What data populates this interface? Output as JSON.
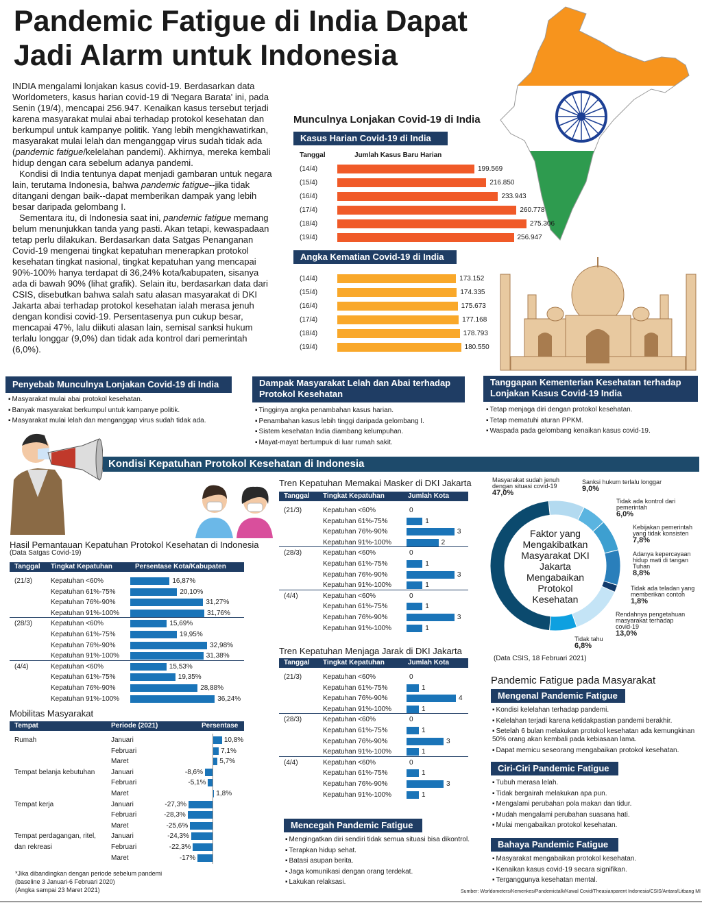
{
  "title": "Pandemic Fatigue di India Dapat Jadi Alarm untuk Indonesia",
  "body": {
    "p1a": "INDIA mengalami lonjakan kasus covid-19. Berdasarkan data Worldometers, kasus harian covid-19 di 'Negara Barata' ini, pada Senin (19/4), mencapai 256.947. Kenaikan kasus tersebut terjadi karena masyarakat mulai abai terhadap protokol kesehatan dan berkumpul untuk kampanye politik. Yang lebih mengkhawatirkan, masyarakat mulai lelah dan menganggap virus sudah tidak ada (",
    "p1i": "pandemic fatigue",
    "p1b": "/kelelahan pandemi). Akhirnya, mereka kembali hidup dengan cara sebelum adanya pandemi.",
    "p2a": "Kondisi di India tentunya dapat menjadi gambaran untuk negara lain, terutama Indonesia, bahwa ",
    "p2i": "pandemic fatigue",
    "p2b": "--jika tidak ditangani dengan baik--dapat memberikan dampak yang lebih besar daripada gelombang I.",
    "p3a": "Sementara itu, di Indonesia saat ini, ",
    "p3i": "pandemic fatigue",
    "p3b": " memang belum menunjukkan tanda yang pasti. Akan tetapi, kewaspadaan tetap perlu dilakukan. Berdasarkan data Satgas Penanganan Covid-19 mengenai tingkat kepatuhan menerapkan protokol kesehatan tingkat nasional, tingkat kepatuhan yang mencapai 90%-100% hanya terdapat di 36,24% kota/kabupaten, sisanya ada di bawah 90% (lihat grafik). Selain itu, berdasarkan data dari CSIS, disebutkan bahwa salah satu alasan masyarakat di DKI Jakarta abai terhadap protokol kesehatan ialah merasa jenuh dengan kondisi covid-19. Persentasenya pun cukup besar, mencapai 47%, lalu diikuti alasan lain, semisal sanksi hukum terlalu longgar (9,0%) dan tidak ada kontrol dari pemerintah (6,0%)."
  },
  "colors": {
    "navy": "#1f3d64",
    "orange": "#f05a28",
    "amber": "#f9a82a",
    "banner": "#1d4a6b",
    "saffron": "#f7941d",
    "green": "#2e9b4f"
  },
  "india": {
    "title": "Munculnya Lonjakan Covid-19 di India",
    "cases": {
      "header": "Kasus Harian Covid-19 di India",
      "col_date": "Tanggal",
      "col_value": "Jumlah Kasus Baru Harian",
      "rows": [
        {
          "date": "(14/4)",
          "label": "199.569",
          "value": 199569
        },
        {
          "date": "(15/4)",
          "label": "216.850",
          "value": 216850
        },
        {
          "date": "(16/4)",
          "label": "233.943",
          "value": 233943
        },
        {
          "date": "(17/4)",
          "label": "260.778",
          "value": 260778
        },
        {
          "date": "(18/4)",
          "label": "275.306",
          "value": 275306
        },
        {
          "date": "(19/4)",
          "label": "256.947",
          "value": 256947
        }
      ]
    },
    "deaths": {
      "header": "Angka Kematian Covid-19 di India",
      "rows": [
        {
          "date": "(14/4)",
          "label": "173.152",
          "value": 173152
        },
        {
          "date": "(15/4)",
          "label": "174.335",
          "value": 174335
        },
        {
          "date": "(16/4)",
          "label": "175.673",
          "value": 175673
        },
        {
          "date": "(17/4)",
          "label": "177.168",
          "value": 177168
        },
        {
          "date": "(18/4)",
          "label": "178.793",
          "value": 178793
        },
        {
          "date": "(19/4)",
          "label": "180.550",
          "value": 180550
        }
      ]
    }
  },
  "sections": [
    {
      "title": "Penyebab Munculnya Lonjakan Covid-19 di India",
      "items": [
        "Masyarakat mulai abai protokol kesehatan.",
        "Banyak masyarakat berkumpul untuk kampanye politik.",
        "Masyarakat mulai lelah dan menganggap virus sudah tidak ada."
      ]
    },
    {
      "title": "Dampak Masyarakat Lelah dan Abai terhadap Protokol Kesehatan",
      "items": [
        "Tingginya angka penambahan kasus harian.",
        "Penambahan kasus lebih tinggi daripada gelombang I.",
        "Sistem kesehatan India diambang kelumpuhan.",
        "Mayat-mayat bertumpuk di luar rumah sakit."
      ]
    },
    {
      "title": "Tanggapan Kementerian Kesehatan terhadap Lonjakan Kasus Covid-19 India",
      "items": [
        "Tetap menjaga diri dengan protokol kesehatan.",
        "Tetap mematuhi aturan PPKM.",
        "Waspada pada gelombang kenaikan kasus covid-19."
      ]
    }
  ],
  "banner": "Kondisi Kepatuhan Protokol Kesehatan di Indonesia",
  "compliance": {
    "title": "Hasil Pemantauan Kepatuhan Protokol Kesehatan di Indonesia",
    "subtitle": "(Data Satgas Covid-19)",
    "cols": [
      "Tanggal",
      "Tingkat Kepatuhan",
      "Persentase Kota/Kabupaten"
    ],
    "groups": [
      {
        "date": "(21/3)",
        "rows": [
          {
            "level": "Kepatuhan <60%",
            "label": "16,87%",
            "value": 16.87
          },
          {
            "level": "Kepatuhan 61%-75%",
            "label": "20,10%",
            "value": 20.1
          },
          {
            "level": "Kepatuhan 76%-90%",
            "label": "31,27%",
            "value": 31.27
          },
          {
            "level": "Kepatuhan 91%-100%",
            "label": "31,76%",
            "value": 31.76
          }
        ]
      },
      {
        "date": "(28/3)",
        "rows": [
          {
            "level": "Kepatuhan <60%",
            "label": "15,69%",
            "value": 15.69
          },
          {
            "level": "Kepatuhan 61%-75%",
            "label": "19,95%",
            "value": 19.95
          },
          {
            "level": "Kepatuhan 76%-90%",
            "label": "32,98%",
            "value": 32.98
          },
          {
            "level": "Kepatuhan 91%-100%",
            "label": "31,38%",
            "value": 31.38
          }
        ]
      },
      {
        "date": "(4/4)",
        "rows": [
          {
            "level": "Kepatuhan <60%",
            "label": "15,53%",
            "value": 15.53
          },
          {
            "level": "Kepatuhan 61%-75%",
            "label": "19,35%",
            "value": 19.35
          },
          {
            "level": "Kepatuhan 76%-90%",
            "label": "28,88%",
            "value": 28.88
          },
          {
            "level": "Kepatuhan 91%-100%",
            "label": "36,24%",
            "value": 36.24
          }
        ]
      }
    ]
  },
  "mobility": {
    "title": "Mobilitas Masyarakat",
    "cols": [
      "Tempat",
      "Periode (2021)",
      "Persentase"
    ],
    "groups": [
      {
        "place": "Rumah",
        "rows": [
          {
            "month": "Januari",
            "label": "10,8%",
            "value": 10.8
          },
          {
            "month": "Februari",
            "label": "7,1%",
            "value": 7.1
          },
          {
            "month": "Maret",
            "label": "5,7%",
            "value": 5.7
          }
        ]
      },
      {
        "place": "Tempat belanja kebutuhan",
        "rows": [
          {
            "month": "Januari",
            "label": "-8,6%",
            "value": -8.6
          },
          {
            "month": "Februari",
            "label": "-5,1%",
            "value": -5.1
          },
          {
            "month": "Maret",
            "label": "1,8%",
            "value": 1.8
          }
        ]
      },
      {
        "place": "Tempat kerja",
        "rows": [
          {
            "month": "Januari",
            "label": "-27,3%",
            "value": -27.3
          },
          {
            "month": "Februari",
            "label": "-28,3%",
            "value": -28.3
          },
          {
            "month": "Maret",
            "label": "-25,6%",
            "value": -25.6
          }
        ]
      },
      {
        "place": "Tempat perdagangan, ritel, dan rekreasi",
        "rows": [
          {
            "month": "Januari",
            "label": "-24,3%",
            "value": -24.3
          },
          {
            "month": "Februari",
            "label": "-22,3%",
            "value": -22.3
          },
          {
            "month": "Maret",
            "label": "-17%",
            "value": -17
          }
        ]
      }
    ],
    "notes": [
      "*Jika dibandingkan dengan periode sebelum pandemi",
      "(baseline 3 Januari-6 Februari 2020)",
      "(Angka sampai 23 Maret 2021)"
    ]
  },
  "mask": {
    "title": "Tren Kepatuhan Memakai Masker di DKI Jakarta",
    "cols": [
      "Tanggal",
      "Tingkat Kepatuhan",
      "Jumlah Kota"
    ],
    "groups": [
      {
        "date": "(21/3)",
        "rows": [
          {
            "level": "Kepatuhan <60%",
            "value": 0
          },
          {
            "level": "Kepatuhan 61%-75%",
            "value": 1
          },
          {
            "level": "Kepatuhan 76%-90%",
            "value": 3
          },
          {
            "level": "Kepatuhan 91%-100%",
            "value": 2
          }
        ]
      },
      {
        "date": "(28/3)",
        "rows": [
          {
            "level": "Kepatuhan <60%",
            "value": 0
          },
          {
            "level": "Kepatuhan 61%-75%",
            "value": 1
          },
          {
            "level": "Kepatuhan 76%-90%",
            "value": 3
          },
          {
            "level": "Kepatuhan 91%-100%",
            "value": 1
          }
        ]
      },
      {
        "date": "(4/4)",
        "rows": [
          {
            "level": "Kepatuhan <60%",
            "value": 0
          },
          {
            "level": "Kepatuhan 61%-75%",
            "value": 1
          },
          {
            "level": "Kepatuhan 76%-90%",
            "value": 3
          },
          {
            "level": "Kepatuhan 91%-100%",
            "value": 1
          }
        ]
      }
    ]
  },
  "distance": {
    "title": "Tren Kepatuhan Menjaga Jarak di DKI Jakarta",
    "cols": [
      "Tanggal",
      "Tingkat Kepatuhan",
      "Jumlah Kota"
    ],
    "groups": [
      {
        "date": "(21/3)",
        "rows": [
          {
            "level": "Kepatuhan <60%",
            "value": 0
          },
          {
            "level": "Kepatuhan 61%-75%",
            "value": 1
          },
          {
            "level": "Kepatuhan 76%-90%",
            "value": 4
          },
          {
            "level": "Kepatuhan 91%-100%",
            "value": 1
          }
        ]
      },
      {
        "date": "(28/3)",
        "rows": [
          {
            "level": "Kepatuhan <60%",
            "value": 0
          },
          {
            "level": "Kepatuhan 61%-75%",
            "value": 1
          },
          {
            "level": "Kepatuhan 76%-90%",
            "value": 3
          },
          {
            "level": "Kepatuhan 91%-100%",
            "value": 1
          }
        ]
      },
      {
        "date": "(4/4)",
        "rows": [
          {
            "level": "Kepatuhan <60%",
            "value": 0
          },
          {
            "level": "Kepatuhan 61%-75%",
            "value": 1
          },
          {
            "level": "Kepatuhan 76%-90%",
            "value": 3
          },
          {
            "level": "Kepatuhan 91%-100%",
            "value": 1
          }
        ]
      }
    ]
  },
  "prevent": {
    "title": "Mencegah Pandemic Fatigue",
    "items": [
      "Mengingatkan diri sendiri tidak semua situasi bisa dikontrol.",
      "Terapkan hidup sehat.",
      "Batasi asupan berita.",
      "Jaga komunikasi dengan orang terdekat.",
      "Lakukan relaksasi."
    ]
  },
  "factors": {
    "center": "Faktor yang Mengakibatkan Masyarakat DKI Jakarta Mengabaikan Protokol Kesehatan",
    "source": "(Data CSIS, 18 Februari 2021)",
    "slices": [
      {
        "label": "Sanksi hukum terlalu longgar",
        "pct": "9,0%",
        "value": 9.0,
        "color": "#b3daf0"
      },
      {
        "label": "Tidak ada kontrol dari pemerintah",
        "pct": "6,0%",
        "value": 6.0,
        "color": "#5ab4e0"
      },
      {
        "label": "Kebijakan pemerintah yang tidak konsisten",
        "pct": "7,8%",
        "value": 7.8,
        "color": "#3d9fd0"
      },
      {
        "label": "Adanya kepercayaan hidup mati di tangan Tuhan",
        "pct": "8,8%",
        "value": 8.8,
        "color": "#2a7fbb"
      },
      {
        "label": "Tidak ada teladan yang memberikan contoh",
        "pct": "1,8%",
        "value": 1.8,
        "color": "#123a6a"
      },
      {
        "label": "Rendahnya pengetahuan masyarakat terhadap covid-19",
        "pct": "13,0%",
        "value": 13.0,
        "color": "#c4e4f6"
      },
      {
        "label": "Tidak tahu",
        "pct": "6,8%",
        "value": 6.8,
        "color": "#0ea0e0"
      },
      {
        "label": "Masyarakat sudah jenuh dengan situasi covid-19",
        "pct": "47,0%",
        "value": 47.0,
        "color": "#0b4a6e"
      }
    ]
  },
  "fatigue": {
    "title": "Pandemic Fatigue pada Masyarakat",
    "boxes": [
      {
        "title": "Mengenal Pandemic Fatigue",
        "items": [
          "Kondisi kelelahan terhadap pandemi.",
          "Kelelahan terjadi karena ketidakpastian pandemi berakhir.",
          "Setelah 6 bulan melakukan protokol kesehatan ada kemungkinan 50% orang akan kembali pada kebiasaan lama.",
          "Dapat memicu seseorang mengabaikan protokol kesehatan."
        ]
      },
      {
        "title": "Ciri-Ciri Pandemic Fatigue",
        "items": [
          "Tubuh merasa lelah.",
          "Tidak bergairah melakukan apa pun.",
          "Mengalami perubahan pola makan dan tidur.",
          "Mudah mengalami perubahan suasana hati.",
          "Mulai mengabaikan protokol kesehatan."
        ]
      },
      {
        "title": "Bahaya Pandemic Fatigue",
        "items": [
          "Masyarakat mengabaikan protokol kesehatan.",
          "Kenaikan kasus covid-19 secara signifikan.",
          "Terganggunya kesehatan mental."
        ]
      }
    ]
  },
  "source": "Sumber: Worldometers/Kemenkes/Pandemictalk/Kawal Covid/Theasianparent Indonesia/CSIS/Antara/Litbang MI"
}
